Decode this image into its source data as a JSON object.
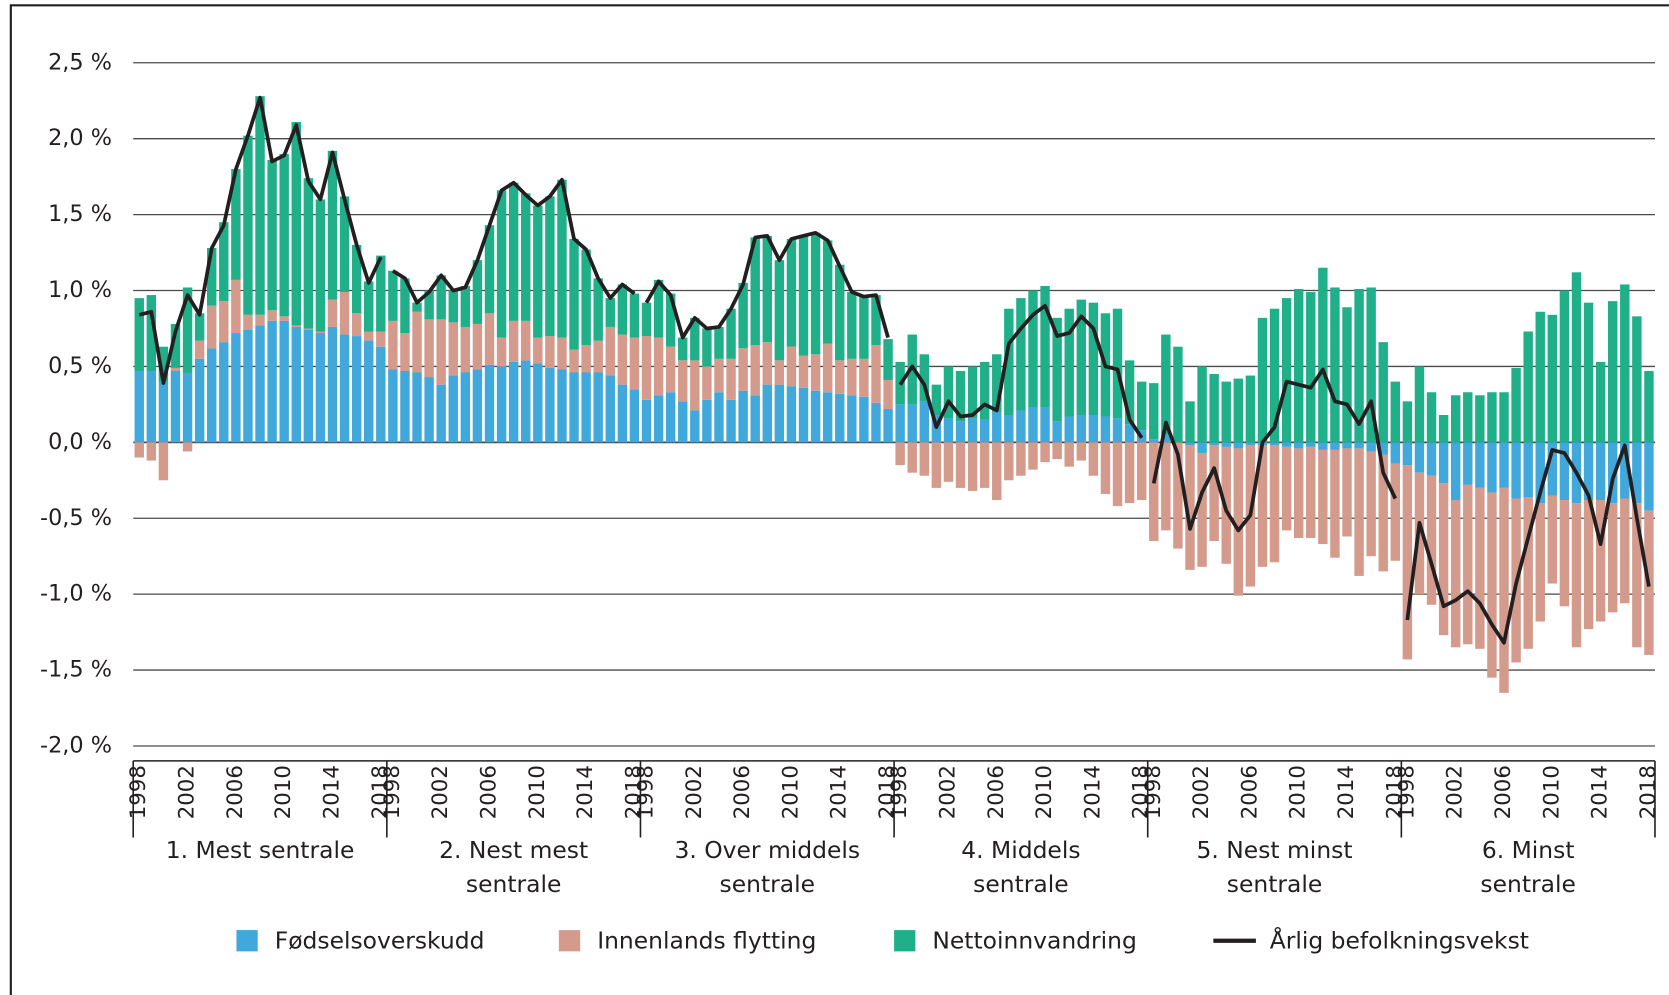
{
  "chart_data": {
    "type": "bar",
    "stacked": true,
    "categories": [
      1998,
      null,
      null,
      null,
      2002,
      null,
      null,
      null,
      2006,
      null,
      null,
      null,
      2010,
      null,
      null,
      null,
      2014,
      null,
      null,
      null,
      2018
    ],
    "groups": [
      [
        "1. Mest sentrale"
      ],
      [
        "2. Nest mest",
        "sentrale"
      ],
      [
        "3. Over middels",
        "sentrale"
      ],
      [
        "4. Middels",
        "sentrale"
      ],
      [
        "5. Nest minst",
        "sentrale"
      ],
      [
        "6. Minst",
        "sentrale"
      ]
    ],
    "ylim": [
      -2.0,
      2.5
    ],
    "yticks": [
      {
        "value": 2.5,
        "label": "2,5 %"
      },
      {
        "value": 2.0,
        "label": "2,0 %"
      },
      {
        "value": 1.5,
        "label": "1,5 %"
      },
      {
        "value": 1.0,
        "label": "1,0 %"
      },
      {
        "value": 0.5,
        "label": "0,5 %"
      },
      {
        "value": 0,
        "label": "0,0 %"
      },
      {
        "value": -0.5,
        "label": "-0,5 %"
      },
      {
        "value": -1.0,
        "label": "-1,0 %"
      },
      {
        "value": -1.5,
        "label": "-1,5 %"
      },
      {
        "value": -2.0,
        "label": "-2,0 %"
      }
    ],
    "grid": true,
    "legend": "bottom",
    "series": [
      {
        "name": "Fødselsoverskudd",
        "color": "#41a8dc",
        "values": [
          [
            0.47,
            0.47,
            0.4,
            0.47,
            0.46,
            0.55,
            0.62,
            0.66,
            0.72,
            0.74,
            0.77,
            0.8,
            0.8,
            0.76,
            0.74,
            0.72,
            0.76,
            0.71,
            0.7,
            0.67,
            0.63
          ],
          [
            0.48,
            0.47,
            0.46,
            0.43,
            0.38,
            0.44,
            0.46,
            0.48,
            0.51,
            0.5,
            0.53,
            0.54,
            0.52,
            0.49,
            0.48,
            0.46,
            0.46,
            0.46,
            0.44,
            0.38,
            0.35
          ],
          [
            0.28,
            0.31,
            0.33,
            0.27,
            0.21,
            0.28,
            0.33,
            0.28,
            0.34,
            0.31,
            0.38,
            0.38,
            0.37,
            0.36,
            0.34,
            0.33,
            0.32,
            0.31,
            0.3,
            0.26,
            0.22
          ],
          [
            0.25,
            0.25,
            0.27,
            0.18,
            0.16,
            0.14,
            0.16,
            0.15,
            0.2,
            0.18,
            0.21,
            0.23,
            0.23,
            0.14,
            0.17,
            0.18,
            0.18,
            0.17,
            0.16,
            0.12,
            0.08
          ],
          [
            0.02,
            0.05,
            0.0,
            -0.02,
            -0.07,
            -0.02,
            -0.03,
            -0.04,
            -0.02,
            -0.02,
            -0.02,
            -0.03,
            -0.04,
            -0.03,
            -0.05,
            -0.05,
            -0.04,
            -0.04,
            -0.06,
            -0.08,
            -0.14
          ],
          [
            -0.15,
            -0.2,
            -0.22,
            -0.27,
            -0.38,
            -0.28,
            -0.3,
            -0.33,
            -0.3,
            -0.37,
            -0.36,
            -0.4,
            -0.35,
            -0.38,
            -0.4,
            -0.38,
            -0.38,
            -0.4,
            -0.37,
            -0.4,
            -0.45
          ]
        ]
      },
      {
        "name": "Innenlands flytting",
        "color": "#d49a8c",
        "values": [
          [
            -0.1,
            -0.12,
            -0.25,
            0.02,
            -0.06,
            0.12,
            0.28,
            0.27,
            0.35,
            0.1,
            0.07,
            0.07,
            0.03,
            0.01,
            0.01,
            0.01,
            0.18,
            0.28,
            0.15,
            0.06,
            0.1
          ],
          [
            0.32,
            0.25,
            0.4,
            0.38,
            0.43,
            0.35,
            0.3,
            0.3,
            0.34,
            0.19,
            0.27,
            0.26,
            0.17,
            0.21,
            0.21,
            0.15,
            0.18,
            0.21,
            0.32,
            0.33,
            0.34
          ],
          [
            0.42,
            0.38,
            0.3,
            0.27,
            0.33,
            0.22,
            0.22,
            0.27,
            0.28,
            0.33,
            0.28,
            0.16,
            0.26,
            0.21,
            0.24,
            0.32,
            0.22,
            0.24,
            0.25,
            0.38,
            0.19
          ],
          [
            -0.15,
            -0.2,
            -0.22,
            -0.3,
            -0.26,
            -0.3,
            -0.32,
            -0.3,
            -0.38,
            -0.25,
            -0.22,
            -0.18,
            -0.13,
            -0.11,
            -0.16,
            -0.12,
            -0.22,
            -0.34,
            -0.42,
            -0.4,
            -0.38
          ],
          [
            -0.65,
            -0.58,
            -0.7,
            -0.82,
            -0.75,
            -0.63,
            -0.77,
            -0.97,
            -0.93,
            -0.8,
            -0.77,
            -0.55,
            -0.59,
            -0.6,
            -0.62,
            -0.71,
            -0.58,
            -0.84,
            -0.69,
            -0.77,
            -0.64
          ],
          [
            -1.28,
            -0.8,
            -0.85,
            -1.0,
            -0.97,
            -1.05,
            -1.06,
            -1.22,
            -1.35,
            -1.08,
            -1.0,
            -0.78,
            -0.58,
            -0.7,
            -0.95,
            -0.85,
            -0.8,
            -0.72,
            -0.69,
            -0.95,
            -0.95
          ]
        ]
      },
      {
        "name": "Nettoinnvandring",
        "color": "#1fb08a",
        "values": [
          [
            0.48,
            0.5,
            0.23,
            0.29,
            0.56,
            0.18,
            0.38,
            0.52,
            0.73,
            1.18,
            1.44,
            0.99,
            1.07,
            1.34,
            0.99,
            0.87,
            0.98,
            0.63,
            0.45,
            0.33,
            0.5
          ],
          [
            0.33,
            0.36,
            0.06,
            0.19,
            0.29,
            0.21,
            0.27,
            0.42,
            0.58,
            0.97,
            0.91,
            0.84,
            0.87,
            0.92,
            1.04,
            0.73,
            0.63,
            0.41,
            0.19,
            0.33,
            0.29
          ],
          [
            0.22,
            0.38,
            0.35,
            0.15,
            0.28,
            0.25,
            0.21,
            0.33,
            0.43,
            0.71,
            0.7,
            0.66,
            0.71,
            0.79,
            0.8,
            0.68,
            0.63,
            0.44,
            0.41,
            0.33,
            0.27
          ],
          [
            0.28,
            0.46,
            0.31,
            0.2,
            0.34,
            0.33,
            0.34,
            0.38,
            0.38,
            0.7,
            0.74,
            0.77,
            0.8,
            0.68,
            0.71,
            0.76,
            0.74,
            0.68,
            0.72,
            0.42,
            0.32
          ],
          [
            0.37,
            0.66,
            0.63,
            0.27,
            0.5,
            0.45,
            0.4,
            0.42,
            0.44,
            0.82,
            0.88,
            0.95,
            1.01,
            0.99,
            1.15,
            1.02,
            0.89,
            1.01,
            1.02,
            0.66,
            0.4
          ],
          [
            0.27,
            0.5,
            0.33,
            0.18,
            0.31,
            0.33,
            0.31,
            0.33,
            0.33,
            0.49,
            0.73,
            0.86,
            0.84,
            1.0,
            1.12,
            0.92,
            0.53,
            0.93,
            1.04,
            0.83,
            0.47
          ]
        ]
      },
      {
        "name": "Årlig befolkningsvekst",
        "color": "#231f20",
        "type": "line",
        "values": [
          [
            0.84,
            0.86,
            0.39,
            0.73,
            0.97,
            0.84,
            1.28,
            1.43,
            1.8,
            2.02,
            2.27,
            1.85,
            1.89,
            2.09,
            1.72,
            1.6,
            1.91,
            1.6,
            1.3,
            1.05,
            1.22
          ],
          [
            1.13,
            1.08,
            0.92,
            0.99,
            1.1,
            1.0,
            1.02,
            1.2,
            1.43,
            1.66,
            1.71,
            1.63,
            1.56,
            1.62,
            1.73,
            1.34,
            1.27,
            1.08,
            0.95,
            1.04,
            0.98
          ],
          [
            0.92,
            1.06,
            0.97,
            0.69,
            0.82,
            0.75,
            0.76,
            0.88,
            1.04,
            1.35,
            1.36,
            1.2,
            1.34,
            1.36,
            1.38,
            1.33,
            1.16,
            0.99,
            0.96,
            0.97,
            0.69
          ],
          [
            0.38,
            0.5,
            0.38,
            0.1,
            0.27,
            0.17,
            0.18,
            0.25,
            0.21,
            0.65,
            0.75,
            0.84,
            0.9,
            0.7,
            0.72,
            0.83,
            0.75,
            0.5,
            0.48,
            0.15,
            0.03
          ],
          [
            -0.27,
            0.13,
            -0.08,
            -0.57,
            -0.33,
            -0.17,
            -0.45,
            -0.58,
            -0.48,
            0.0,
            0.1,
            0.4,
            0.38,
            0.36,
            0.48,
            0.27,
            0.25,
            0.12,
            0.27,
            -0.2,
            -0.37
          ],
          [
            -1.17,
            -0.53,
            -0.8,
            -1.08,
            -1.04,
            -0.98,
            -1.06,
            -1.2,
            -1.32,
            -0.93,
            -0.63,
            -0.33,
            -0.05,
            -0.07,
            -0.2,
            -0.35,
            -0.67,
            -0.24,
            -0.02,
            -0.5,
            -0.95
          ]
        ]
      }
    ]
  }
}
